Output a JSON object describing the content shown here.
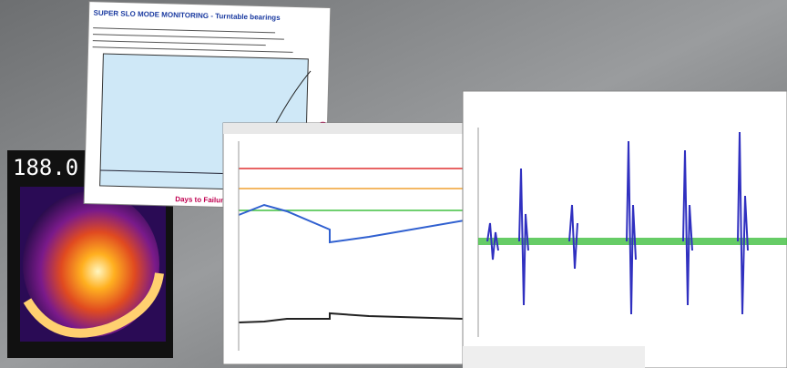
{
  "thermal": {
    "readout": "188.0"
  },
  "bearing_panel": {
    "title": "SUPER SLO MODE MONITORING - Turntable bearings",
    "x_label": "Days to Failure",
    "y_label": "(%)"
  }
}
